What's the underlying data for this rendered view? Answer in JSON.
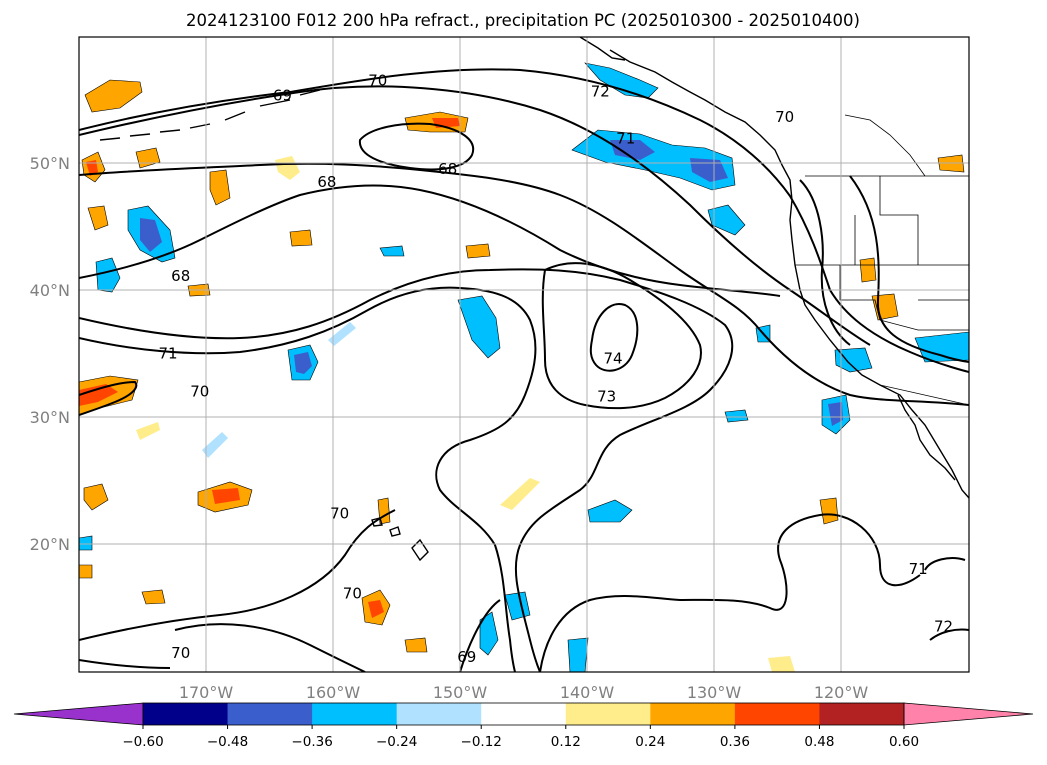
{
  "title": "2024123100 F012 200 hPa refract., precipitation PC (2025010300 - 2025010400)",
  "longitude_ticks": [
    "170°W",
    "160°W",
    "150°W",
    "140°W",
    "130°W",
    "120°W"
  ],
  "latitude_ticks": [
    "50°N",
    "40°N",
    "30°N",
    "20°N"
  ],
  "colorbar": {
    "ticks": [
      "−0.60",
      "−0.48",
      "−0.36",
      "−0.24",
      "−0.12",
      "0.12",
      "0.24",
      "0.36",
      "0.48",
      "0.60"
    ],
    "colors": [
      "#9932cc",
      "#00008b",
      "#3a5fcd",
      "#00bfff",
      "#b0e2ff",
      "#ffffff",
      "#ffec8b",
      "#ffa500",
      "#ff4500",
      "#b22222",
      "#ff82ab"
    ]
  },
  "contour_labels": [
    {
      "text": "69",
      "lon": -164,
      "lat": 55
    },
    {
      "text": "70",
      "lon": -156.5,
      "lat": 56.2
    },
    {
      "text": "72",
      "lon": -139,
      "lat": 55.3
    },
    {
      "text": "71",
      "lon": -137,
      "lat": 51.6
    },
    {
      "text": "70",
      "lon": -124.5,
      "lat": 53.3
    },
    {
      "text": "68",
      "lon": -151,
      "lat": 49.2
    },
    {
      "text": "68",
      "lon": -160.5,
      "lat": 48.2
    },
    {
      "text": "68",
      "lon": -172,
      "lat": 40.8
    },
    {
      "text": "71",
      "lon": -173,
      "lat": 34.7
    },
    {
      "text": "70",
      "lon": -170.5,
      "lat": 31.7
    },
    {
      "text": "74",
      "lon": -138,
      "lat": 34.3
    },
    {
      "text": "73",
      "lon": -138.5,
      "lat": 31.3
    },
    {
      "text": "70",
      "lon": -159.5,
      "lat": 22.1
    },
    {
      "text": "70",
      "lon": -158.5,
      "lat": 15.8
    },
    {
      "text": "70",
      "lon": -172,
      "lat": 11.1
    },
    {
      "text": "69",
      "lon": -149.5,
      "lat": 10.8
    },
    {
      "text": "71",
      "lon": -114,
      "lat": 17.7
    },
    {
      "text": "72",
      "lon": -112,
      "lat": 13.2
    }
  ]
}
